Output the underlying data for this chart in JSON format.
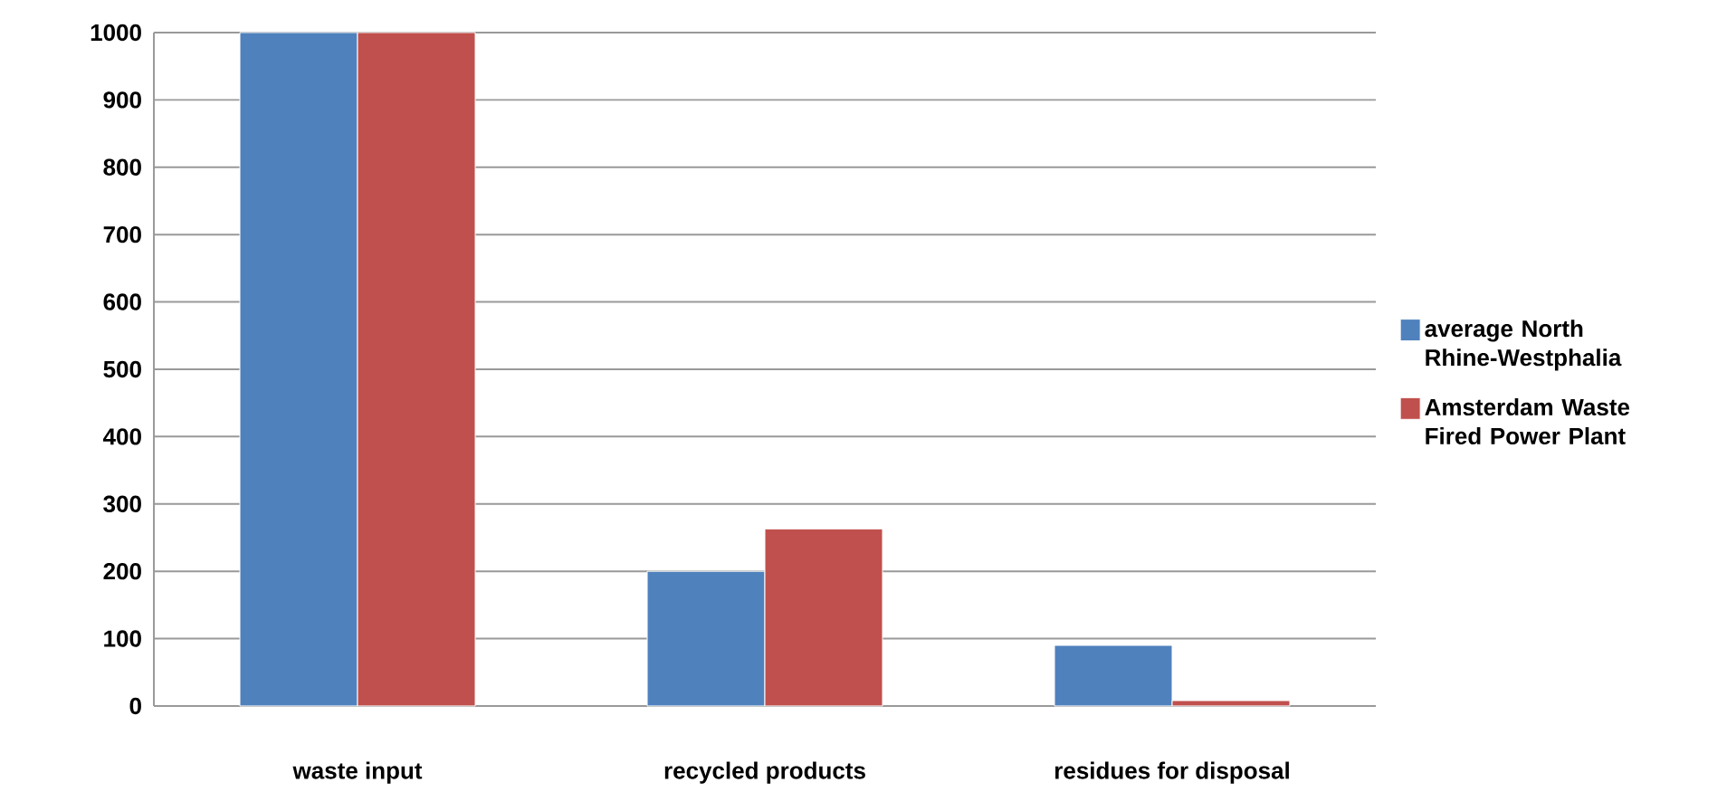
{
  "chart_data": {
    "type": "bar",
    "categories": [
      "waste input",
      "recycled products",
      "residues for disposal"
    ],
    "series": [
      {
        "name": "average North Rhine-Westphalia",
        "color": "#4f81bd",
        "values": [
          1000,
          200,
          90
        ]
      },
      {
        "name": "Amsterdam Waste Fired Power Plant",
        "color": "#c0504d",
        "values": [
          1000,
          263,
          8
        ]
      }
    ],
    "ylim": [
      0,
      1000
    ],
    "yticks": [
      0,
      100,
      200,
      300,
      400,
      500,
      600,
      700,
      800,
      900,
      1000
    ],
    "grid": "y",
    "legend": "right"
  }
}
